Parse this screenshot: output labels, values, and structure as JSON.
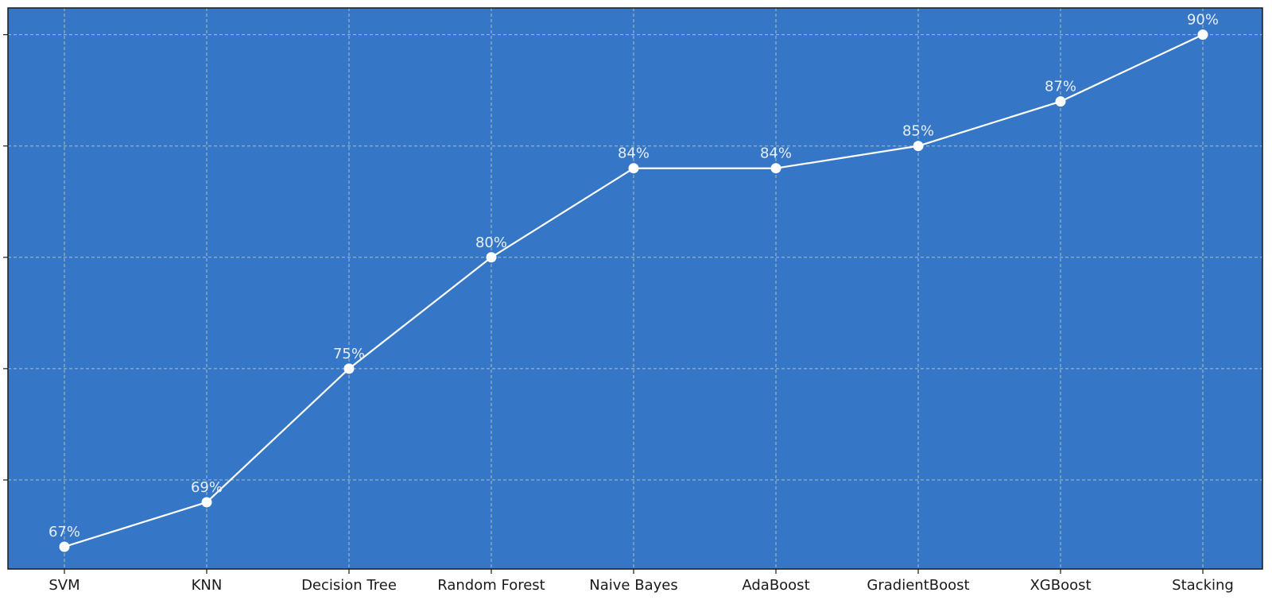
{
  "chart_data": {
    "type": "line",
    "title": "",
    "xlabel": "",
    "ylabel": "",
    "categories": [
      "SVM",
      "KNN",
      "Decision Tree",
      "Random Forest",
      "Naive Bayes",
      "AdaBoost",
      "GradientBoost",
      "XGBoost",
      "Stacking"
    ],
    "series": [
      {
        "values": [
          67.0,
          69.0,
          75.0,
          80.0,
          84.0,
          84.0,
          85.0,
          87.0,
          90.0
        ],
        "labels": [
          "67%",
          "69%",
          "75%",
          "80%",
          "84%",
          "84%",
          "85%",
          "87%",
          "90%"
        ]
      }
    ],
    "ylim": [
      66.0,
      91.2
    ],
    "y_ticks": [
      70,
      75,
      80,
      85,
      90
    ],
    "y_tick_labels_visible": false,
    "grid": true,
    "colors": {
      "background": "#3577c6",
      "line": "#ffffff",
      "marker": "#ffffff",
      "grid": "#a9c2bd",
      "data_label": "#e8eef8",
      "axis": "#1a1a1a"
    }
  }
}
